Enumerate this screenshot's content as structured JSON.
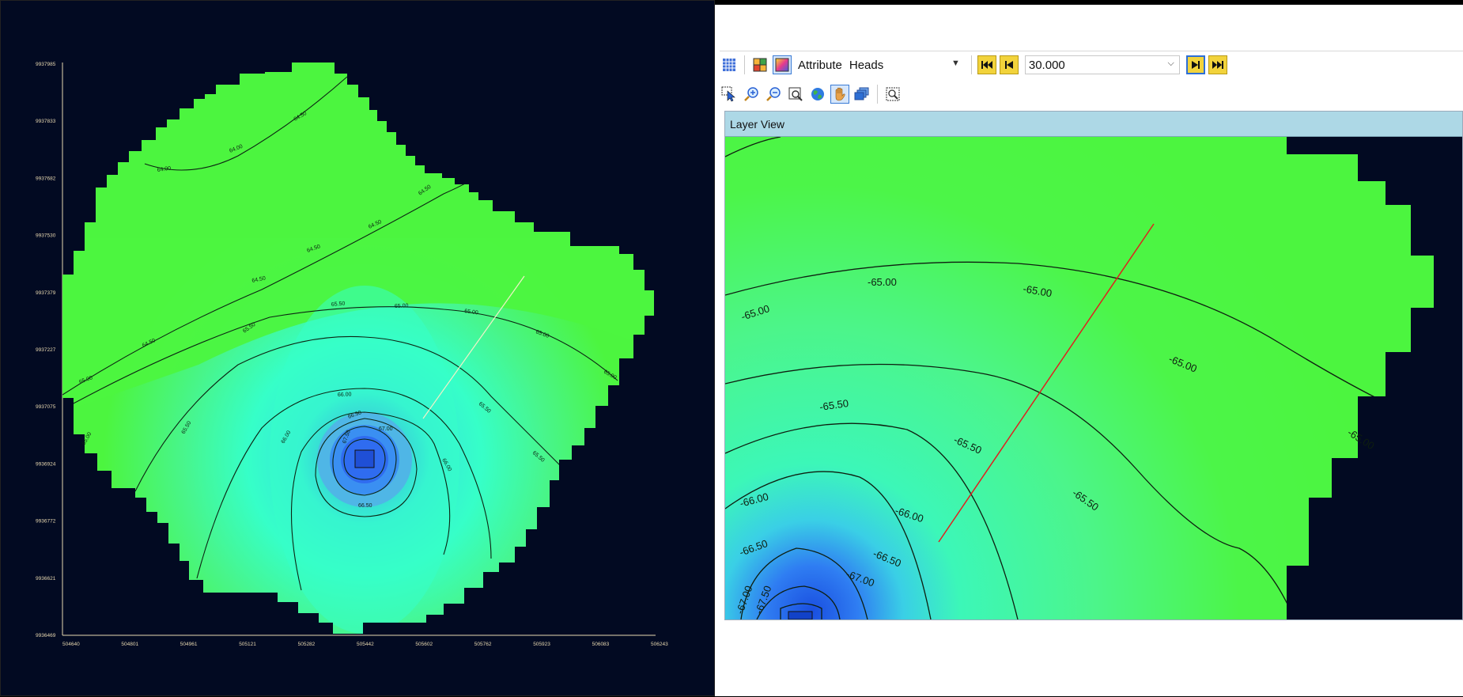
{
  "left_plot": {
    "y_ticks": [
      "9937985",
      "9937833",
      "9937682",
      "9937530",
      "9937379",
      "9937227",
      "9937075",
      "9936924",
      "9936772",
      "9936621",
      "9936469"
    ],
    "x_ticks": [
      "504640",
      "504801",
      "504961",
      "505121",
      "505282",
      "505442",
      "505602",
      "505762",
      "505923",
      "506083",
      "506243"
    ],
    "contour_labels": [
      "64.00",
      "64.00",
      "64.50",
      "64.50",
      "64.50",
      "64.50",
      "64.50",
      "64.50",
      "65.00",
      "65.00",
      "65.00",
      "65.00",
      "65.00",
      "65.50",
      "65.50",
      "65.50",
      "65.50",
      "66.00",
      "66.00",
      "66.00",
      "66.50",
      "66.50",
      "67.00",
      "67.50",
      "65.50",
      "65.00"
    ]
  },
  "toolbar": {
    "attribute_label": "Attribute",
    "attribute_value": "Heads",
    "time_value": "30.000",
    "icons": [
      "grid-icon",
      "color-grid-icon",
      "color-map-icon",
      "first-frame-icon",
      "previous-frame-icon",
      "next-frame-icon",
      "last-frame-icon",
      "select-pointer-icon",
      "zoom-in-icon",
      "zoom-out-icon",
      "zoom-extent-icon",
      "globe-icon",
      "pan-hand-icon",
      "layers-icon",
      "zoom-window-icon"
    ]
  },
  "layer_view": {
    "title": "Layer View",
    "contour_labels": [
      "-65.00",
      "-65.00",
      "-65.00",
      "-65.00",
      "-65.00",
      "-65.50",
      "-65.50",
      "-65.50",
      "-65.50",
      "-66.00",
      "-66.00",
      "-66.00",
      "-66.50",
      "-66.50",
      "-67.00",
      "-67.00",
      "-67.50"
    ]
  },
  "colors": {
    "background_dark": "#020a22",
    "green": "#4cf53f",
    "cyan": "#36ffc8",
    "blue": "#3b7dff",
    "toolbar_yellow": "#f2d33b",
    "header_blue": "#add8e6"
  }
}
